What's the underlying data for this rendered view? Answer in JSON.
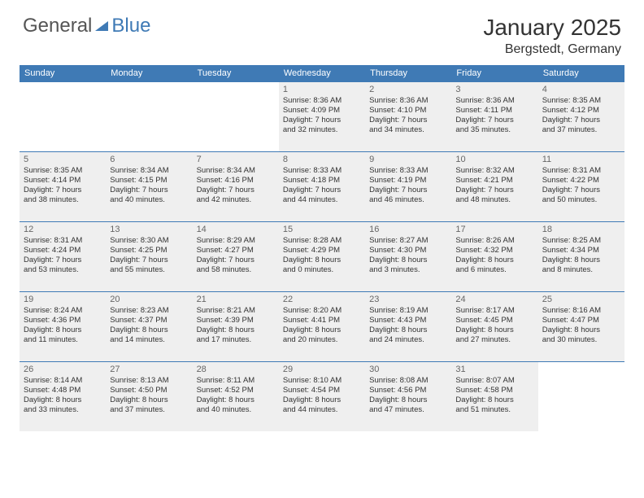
{
  "brand": {
    "gen": "General",
    "blue": "Blue"
  },
  "title": "January 2025",
  "location": "Bergstedt, Germany",
  "colors": {
    "header_bg": "#3f7ab5",
    "header_text": "#ffffff",
    "gray_cell": "#efefef",
    "border": "#3f7ab5",
    "body_text": "#333333"
  },
  "weekdays": [
    "Sunday",
    "Monday",
    "Tuesday",
    "Wednesday",
    "Thursday",
    "Friday",
    "Saturday"
  ],
  "layout": {
    "columns": 7,
    "rows": 5,
    "start_weekday_index": 3,
    "days_in_month": 31
  },
  "days": [
    {
      "n": 1,
      "sunrise": "8:36 AM",
      "sunset": "4:09 PM",
      "daylight": "7 hours and 32 minutes."
    },
    {
      "n": 2,
      "sunrise": "8:36 AM",
      "sunset": "4:10 PM",
      "daylight": "7 hours and 34 minutes."
    },
    {
      "n": 3,
      "sunrise": "8:36 AM",
      "sunset": "4:11 PM",
      "daylight": "7 hours and 35 minutes."
    },
    {
      "n": 4,
      "sunrise": "8:35 AM",
      "sunset": "4:12 PM",
      "daylight": "7 hours and 37 minutes."
    },
    {
      "n": 5,
      "sunrise": "8:35 AM",
      "sunset": "4:14 PM",
      "daylight": "7 hours and 38 minutes."
    },
    {
      "n": 6,
      "sunrise": "8:34 AM",
      "sunset": "4:15 PM",
      "daylight": "7 hours and 40 minutes."
    },
    {
      "n": 7,
      "sunrise": "8:34 AM",
      "sunset": "4:16 PM",
      "daylight": "7 hours and 42 minutes."
    },
    {
      "n": 8,
      "sunrise": "8:33 AM",
      "sunset": "4:18 PM",
      "daylight": "7 hours and 44 minutes."
    },
    {
      "n": 9,
      "sunrise": "8:33 AM",
      "sunset": "4:19 PM",
      "daylight": "7 hours and 46 minutes."
    },
    {
      "n": 10,
      "sunrise": "8:32 AM",
      "sunset": "4:21 PM",
      "daylight": "7 hours and 48 minutes."
    },
    {
      "n": 11,
      "sunrise": "8:31 AM",
      "sunset": "4:22 PM",
      "daylight": "7 hours and 50 minutes."
    },
    {
      "n": 12,
      "sunrise": "8:31 AM",
      "sunset": "4:24 PM",
      "daylight": "7 hours and 53 minutes."
    },
    {
      "n": 13,
      "sunrise": "8:30 AM",
      "sunset": "4:25 PM",
      "daylight": "7 hours and 55 minutes."
    },
    {
      "n": 14,
      "sunrise": "8:29 AM",
      "sunset": "4:27 PM",
      "daylight": "7 hours and 58 minutes."
    },
    {
      "n": 15,
      "sunrise": "8:28 AM",
      "sunset": "4:29 PM",
      "daylight": "8 hours and 0 minutes."
    },
    {
      "n": 16,
      "sunrise": "8:27 AM",
      "sunset": "4:30 PM",
      "daylight": "8 hours and 3 minutes."
    },
    {
      "n": 17,
      "sunrise": "8:26 AM",
      "sunset": "4:32 PM",
      "daylight": "8 hours and 6 minutes."
    },
    {
      "n": 18,
      "sunrise": "8:25 AM",
      "sunset": "4:34 PM",
      "daylight": "8 hours and 8 minutes."
    },
    {
      "n": 19,
      "sunrise": "8:24 AM",
      "sunset": "4:36 PM",
      "daylight": "8 hours and 11 minutes."
    },
    {
      "n": 20,
      "sunrise": "8:23 AM",
      "sunset": "4:37 PM",
      "daylight": "8 hours and 14 minutes."
    },
    {
      "n": 21,
      "sunrise": "8:21 AM",
      "sunset": "4:39 PM",
      "daylight": "8 hours and 17 minutes."
    },
    {
      "n": 22,
      "sunrise": "8:20 AM",
      "sunset": "4:41 PM",
      "daylight": "8 hours and 20 minutes."
    },
    {
      "n": 23,
      "sunrise": "8:19 AM",
      "sunset": "4:43 PM",
      "daylight": "8 hours and 24 minutes."
    },
    {
      "n": 24,
      "sunrise": "8:17 AM",
      "sunset": "4:45 PM",
      "daylight": "8 hours and 27 minutes."
    },
    {
      "n": 25,
      "sunrise": "8:16 AM",
      "sunset": "4:47 PM",
      "daylight": "8 hours and 30 minutes."
    },
    {
      "n": 26,
      "sunrise": "8:14 AM",
      "sunset": "4:48 PM",
      "daylight": "8 hours and 33 minutes."
    },
    {
      "n": 27,
      "sunrise": "8:13 AM",
      "sunset": "4:50 PM",
      "daylight": "8 hours and 37 minutes."
    },
    {
      "n": 28,
      "sunrise": "8:11 AM",
      "sunset": "4:52 PM",
      "daylight": "8 hours and 40 minutes."
    },
    {
      "n": 29,
      "sunrise": "8:10 AM",
      "sunset": "4:54 PM",
      "daylight": "8 hours and 44 minutes."
    },
    {
      "n": 30,
      "sunrise": "8:08 AM",
      "sunset": "4:56 PM",
      "daylight": "8 hours and 47 minutes."
    },
    {
      "n": 31,
      "sunrise": "8:07 AM",
      "sunset": "4:58 PM",
      "daylight": "8 hours and 51 minutes."
    }
  ],
  "labels": {
    "sunrise": "Sunrise:",
    "sunset": "Sunset:",
    "daylight": "Daylight:"
  }
}
